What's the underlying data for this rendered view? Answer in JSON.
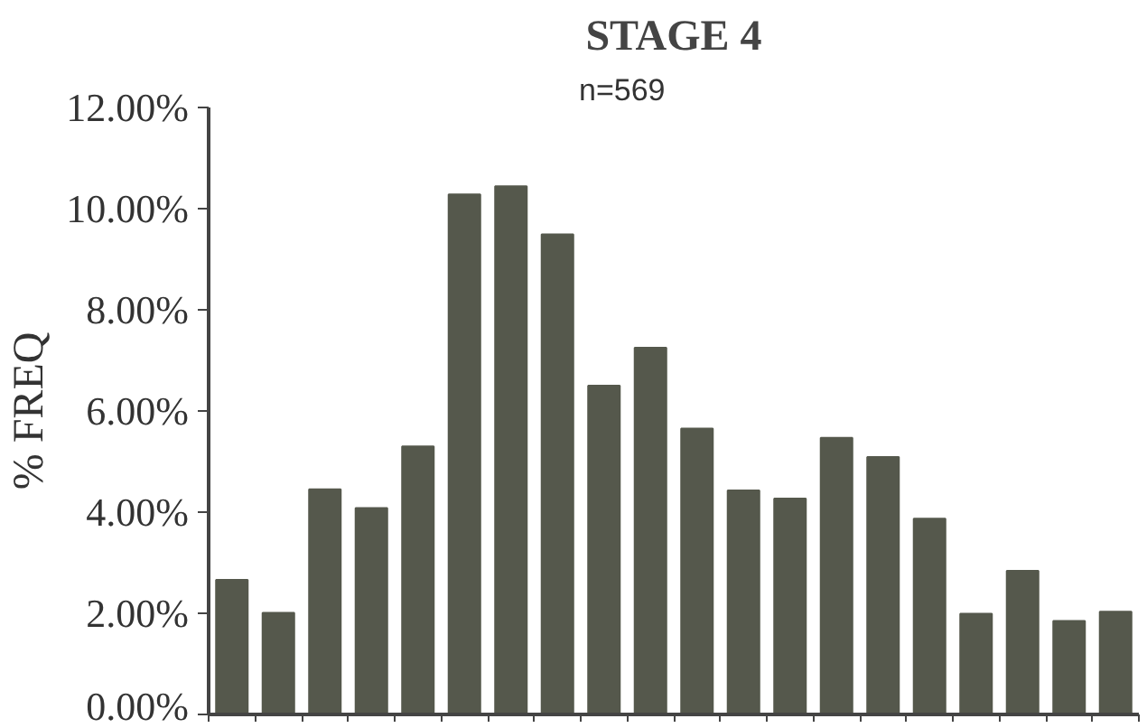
{
  "chart_data": {
    "type": "bar",
    "title": "STAGE 4",
    "subtitle": "n=569",
    "ylabel": "% FREQ",
    "categories": [
      null,
      null,
      null,
      null,
      null,
      null,
      null,
      null,
      null,
      null,
      null,
      null,
      null,
      null,
      null,
      null,
      null,
      null,
      null,
      null
    ],
    "values": [
      2.66,
      2.01,
      4.45,
      4.08,
      5.3,
      10.28,
      10.44,
      9.49,
      6.5,
      7.25,
      5.65,
      4.43,
      4.27,
      5.47,
      5.09,
      3.87,
      1.99,
      2.84,
      1.85,
      2.03
    ],
    "color": "#55584c",
    "ylim": [
      0,
      12
    ],
    "yticks": [
      {
        "value": 0,
        "label": "0.00%"
      },
      {
        "value": 2,
        "label": "2.00%"
      },
      {
        "value": 4,
        "label": "4.00%"
      },
      {
        "value": 6,
        "label": "6.00%"
      },
      {
        "value": 8,
        "label": "8.00%"
      },
      {
        "value": 10,
        "label": "10.00%"
      },
      {
        "value": 12,
        "label": "12.00%"
      }
    ],
    "tick_labels": "y",
    "grid": false
  }
}
